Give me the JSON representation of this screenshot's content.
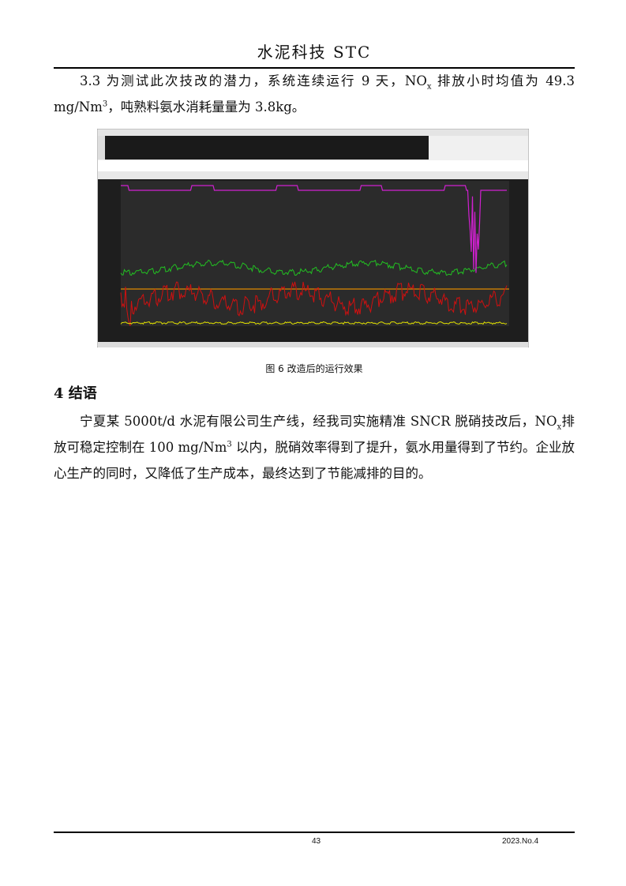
{
  "header": {
    "title": "水泥科技  STC"
  },
  "paragraphs": [
    {
      "runs": [
        {
          "text": "3.3 为测试此次技改的潜力，系统连续运行 9 天，NO"
        },
        {
          "text": "x",
          "pos": "sub"
        },
        {
          "text": " 排放小时均值为 49.3 mg/Nm"
        },
        {
          "text": "3",
          "pos": "sup"
        },
        {
          "text": "，吨熟料氨水消耗量量为 3.8kg。"
        }
      ]
    },
    {
      "runs": [
        {
          "text": "宁夏某 5000t/d 水泥有限公司生产线，经我司实施精准 SNCR 脱硝技改后，NO"
        },
        {
          "text": "x",
          "pos": "sub"
        },
        {
          "text": "排放可稳定控制在 100 mg/Nm"
        },
        {
          "text": "3",
          "pos": "sup"
        },
        {
          "text": " 以内，脱硝效率得到了提升，氨水用量得到了节约。企业放心生产的同时，又降低了生产成本，最终达到了节能减排的目的。"
        }
      ]
    }
  ],
  "figure": {
    "caption": "图 6  改造后的运行效果"
  },
  "section": {
    "heading": "4    结语"
  },
  "footer": {
    "page": "43",
    "issue": "2023.No.4"
  }
}
